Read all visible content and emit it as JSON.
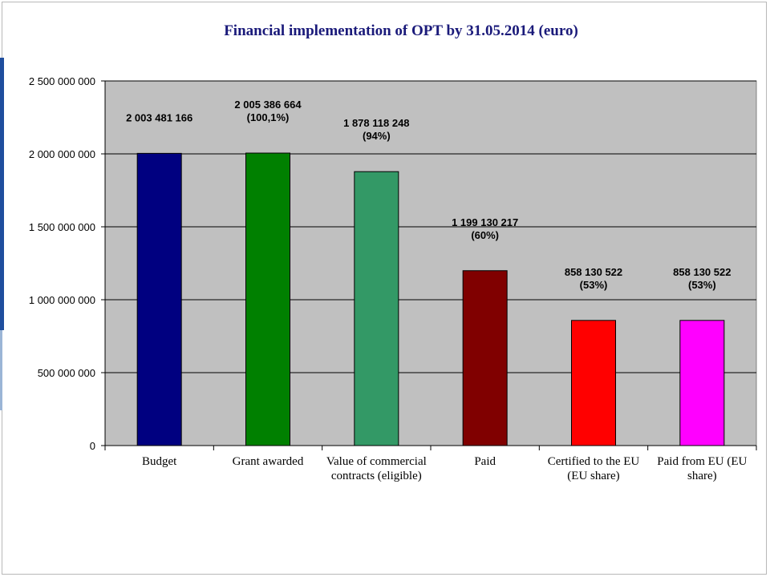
{
  "chart_data": {
    "type": "bar",
    "title": "Financial implementation of OPT by 31.05.2014  (euro)",
    "xlabel": "",
    "ylabel": "",
    "ylim": [
      0,
      2500000000
    ],
    "yticks": [
      0,
      500000000,
      1000000000,
      1500000000,
      2000000000,
      2500000000
    ],
    "ytick_labels": [
      "0",
      "500 000 000",
      "1 000 000 000",
      "1 500 000 000",
      "2 000 000 000",
      "2 500 000 000"
    ],
    "grid": "horizontal",
    "legend": "none",
    "background": "#c0c0c0",
    "categories": [
      [
        "Budget"
      ],
      [
        "Grant awarded"
      ],
      [
        "Value of commercial",
        "contracts (eligible)"
      ],
      [
        "Paid"
      ],
      [
        "Certified to the EU",
        "(EU share)"
      ],
      [
        "Paid from EU (EU",
        "share)"
      ]
    ],
    "values": [
      2003481166,
      2005386664,
      1878118248,
      1199130217,
      858130522,
      858130522
    ],
    "data_labels": [
      [
        "2 003 481 166"
      ],
      [
        "2 005 386 664",
        "(100,1%)"
      ],
      [
        "1 878 118 248",
        "(94%)"
      ],
      [
        "1 199 130 217",
        "(60%)"
      ],
      [
        "858 130 522",
        "(53%)"
      ],
      [
        "858 130 522",
        "(53%)"
      ]
    ],
    "colors": [
      "#000080",
      "#008000",
      "#339966",
      "#800000",
      "#ff0000",
      "#ff00ff"
    ]
  }
}
